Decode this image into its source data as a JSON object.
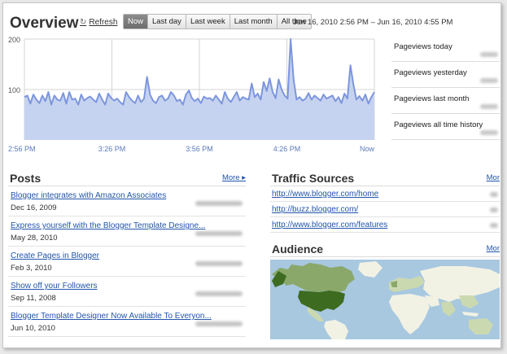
{
  "header": {
    "title": "Overview",
    "refresh_label": "Refresh",
    "date_range": "Jun 16, 2010 2:56 PM – Jun 16, 2010 4:55 PM"
  },
  "tabs": [
    {
      "label": "Now",
      "active": true
    },
    {
      "label": "Last day",
      "active": false
    },
    {
      "label": "Last week",
      "active": false
    },
    {
      "label": "Last month",
      "active": false
    },
    {
      "label": "All time",
      "active": false
    }
  ],
  "chart_data": {
    "type": "area",
    "x_tick_labels": [
      "2:56 PM",
      "3:26 PM",
      "3:56 PM",
      "4:26 PM",
      "Now"
    ],
    "y_tick_labels": [
      "200",
      "100"
    ],
    "ylim": [
      0,
      200
    ],
    "values": [
      85,
      88,
      72,
      90,
      80,
      73,
      88,
      77,
      95,
      70,
      88,
      80,
      78,
      93,
      72,
      95,
      80,
      82,
      70,
      90,
      78,
      83,
      86,
      80,
      75,
      92,
      80,
      70,
      92,
      83,
      78,
      82,
      75,
      70,
      95,
      85,
      78,
      73,
      88,
      75,
      82,
      125,
      90,
      78,
      73,
      85,
      88,
      78,
      82,
      95,
      88,
      77,
      80,
      70,
      90,
      98,
      83,
      77,
      82,
      73,
      86,
      82,
      83,
      78,
      88,
      80,
      72,
      95,
      82,
      75,
      85,
      95,
      78,
      85,
      82,
      80,
      112,
      85,
      92,
      80,
      115,
      97,
      122,
      95,
      83,
      120,
      100,
      88,
      82,
      200,
      120,
      80,
      85,
      78,
      82,
      93,
      80,
      88,
      83,
      78,
      90,
      82,
      85,
      88,
      77,
      85,
      73,
      92,
      82,
      148,
      110,
      80,
      87,
      78,
      90,
      72,
      85,
      95
    ],
    "colors": {
      "fill": "#c6d3f0",
      "line": "#7d96dd",
      "grid": "#d4d4d4"
    }
  },
  "stats": [
    {
      "label": "Pageviews today"
    },
    {
      "label": "Pageviews yesterday"
    },
    {
      "label": "Pageviews last month"
    },
    {
      "label": "Pageviews all time history"
    }
  ],
  "posts": {
    "title": "Posts",
    "more_label": "More ▸",
    "items": [
      {
        "title": "Blogger integrates with Amazon Associates",
        "date": "Dec 16, 2009"
      },
      {
        "title": "Express yourself with the Blogger Template Designe...",
        "date": "May 28, 2010"
      },
      {
        "title": "Create Pages in Blogger",
        "date": "Feb 3, 2010"
      },
      {
        "title": "Show off your Followers",
        "date": "Sep 11, 2008"
      },
      {
        "title": "Blogger Template Designer Now Available To Everyon...",
        "date": "Jun 10, 2010"
      }
    ]
  },
  "traffic": {
    "title": "Traffic Sources",
    "more_label": "Mor",
    "items": [
      {
        "url": "http://www.blogger.com/home"
      },
      {
        "url": "http://buzz.blogger.com/"
      },
      {
        "url": "http://www.blogger.com/features"
      }
    ]
  },
  "audience": {
    "title": "Audience",
    "more_label": "Mor",
    "map_colors": {
      "water": "#a8c8e0",
      "land": "#f2f2e4",
      "dark": "#3d6b1f",
      "mid": "#8aa86a",
      "light": "#cbd9b0"
    }
  }
}
